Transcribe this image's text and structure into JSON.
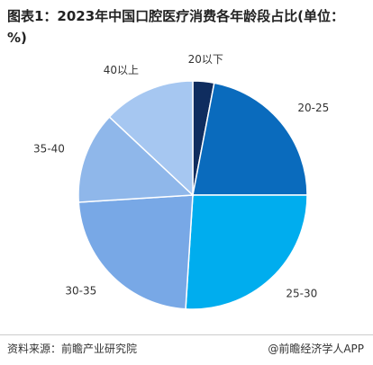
{
  "chart_data": {
    "type": "pie",
    "title": "图表1：2023年中国口腔医疗消费各年龄段占比(单位：%)",
    "categories": [
      "20以下",
      "20-25",
      "25-30",
      "30-35",
      "35-40",
      "40以上"
    ],
    "values": [
      3,
      22,
      26,
      23,
      13,
      13
    ],
    "colors": [
      "#0f2d5f",
      "#0a6bbd",
      "#00adee",
      "#78a8e6",
      "#8fb7ea",
      "#a6c7f1"
    ],
    "source": "资料来源：前瞻产业研究院",
    "brand": "@前瞻经济学人APP"
  }
}
